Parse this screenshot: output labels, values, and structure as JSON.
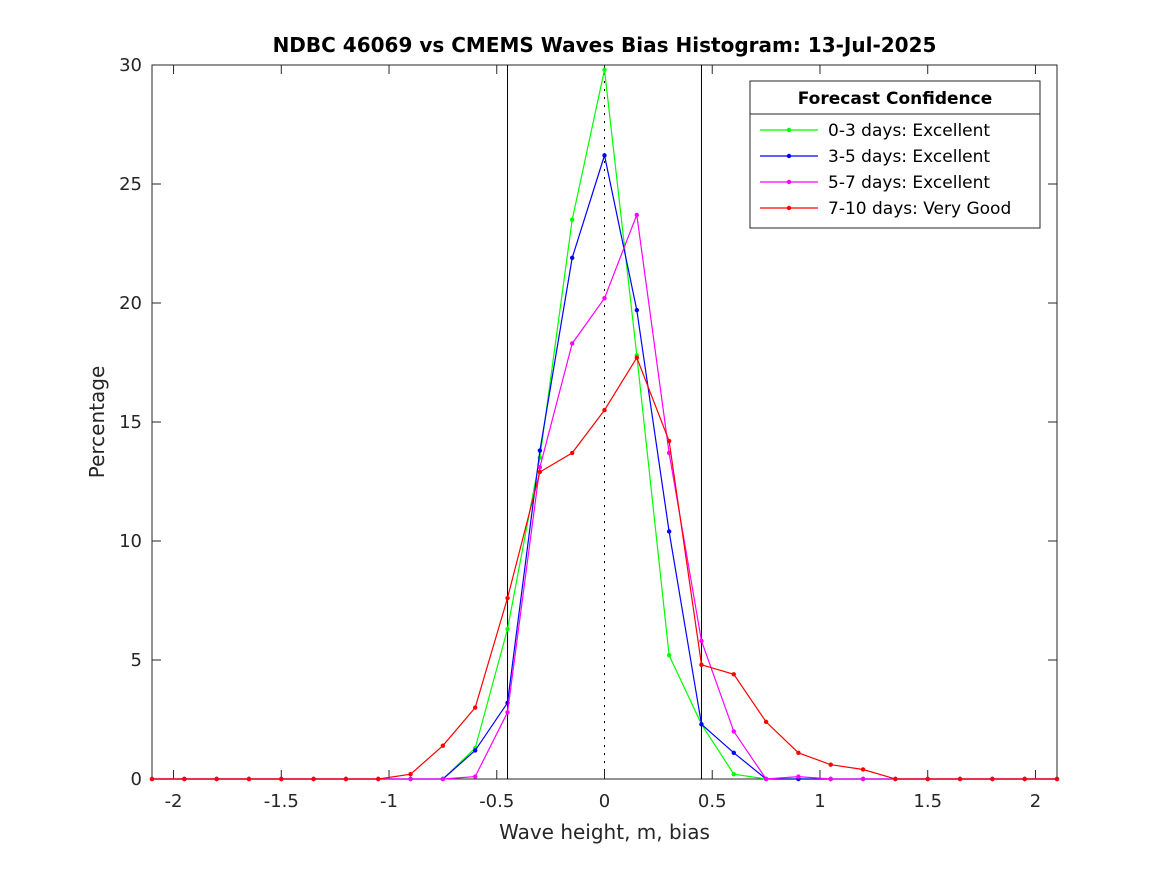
{
  "chart_data": {
    "type": "line",
    "title": "NDBC 46069 vs CMEMS Waves Bias Histogram: 13-Jul-2025",
    "xlabel": "Wave height, m, bias",
    "ylabel": "Percentage",
    "xlim": [
      -2.1,
      2.1
    ],
    "ylim": [
      0,
      30
    ],
    "xticks": [
      -2,
      -1.5,
      -1,
      -0.5,
      0,
      0.5,
      1,
      1.5,
      2
    ],
    "xtick_labels": [
      "-2",
      "-1.5",
      "-1",
      "-0.5",
      "0",
      "0.5",
      "1",
      "1.5",
      "2"
    ],
    "yticks": [
      0,
      5,
      10,
      15,
      20,
      25,
      30
    ],
    "ytick_labels": [
      "0",
      "5",
      "10",
      "15",
      "20",
      "25",
      "30"
    ],
    "reference_lines": [
      -0.45,
      0.45
    ],
    "zero_line": 0,
    "x": [
      -2.1,
      -1.95,
      -1.8,
      -1.65,
      -1.5,
      -1.35,
      -1.2,
      -1.05,
      -0.9,
      -0.75,
      -0.6,
      -0.45,
      -0.3,
      -0.15,
      0,
      0.15,
      0.3,
      0.45,
      0.6,
      0.75,
      0.9,
      1.05,
      1.2,
      1.35,
      1.5,
      1.65,
      1.8,
      1.95,
      2.1
    ],
    "series": [
      {
        "name": "0-3 days: Excellent",
        "color": "#00ff00",
        "values": [
          0,
          0,
          0,
          0,
          0,
          0,
          0,
          0,
          0,
          0,
          1.3,
          6.3,
          13.5,
          23.5,
          29.8,
          17.8,
          5.2,
          2.3,
          0.2,
          0,
          0,
          0,
          0,
          0,
          0,
          0,
          0,
          0,
          0
        ]
      },
      {
        "name": "3-5 days: Excellent",
        "color": "#0000ff",
        "values": [
          0,
          0,
          0,
          0,
          0,
          0,
          0,
          0,
          0,
          0,
          1.2,
          3.2,
          13.8,
          21.9,
          26.2,
          19.7,
          10.4,
          2.3,
          1.1,
          0,
          0,
          0,
          0,
          0,
          0,
          0,
          0,
          0,
          0
        ]
      },
      {
        "name": "5-7 days: Excellent",
        "color": "#ff00ff",
        "values": [
          0,
          0,
          0,
          0,
          0,
          0,
          0,
          0,
          0,
          0,
          0.1,
          2.8,
          13.1,
          18.3,
          20.2,
          23.7,
          13.7,
          5.8,
          2.0,
          0,
          0.1,
          0,
          0,
          0,
          0,
          0,
          0,
          0,
          0
        ]
      },
      {
        "name": "7-10 days: Very Good",
        "color": "#ff0000",
        "values": [
          0,
          0,
          0,
          0,
          0,
          0,
          0,
          0,
          0.2,
          1.4,
          3.0,
          7.6,
          12.9,
          13.7,
          15.5,
          17.7,
          14.2,
          4.8,
          4.4,
          2.4,
          1.1,
          0.6,
          0.4,
          0,
          0,
          0,
          0,
          0,
          0
        ]
      }
    ],
    "legend": {
      "title": "Forecast Confidence",
      "placement": "top-right"
    },
    "grid": false
  }
}
